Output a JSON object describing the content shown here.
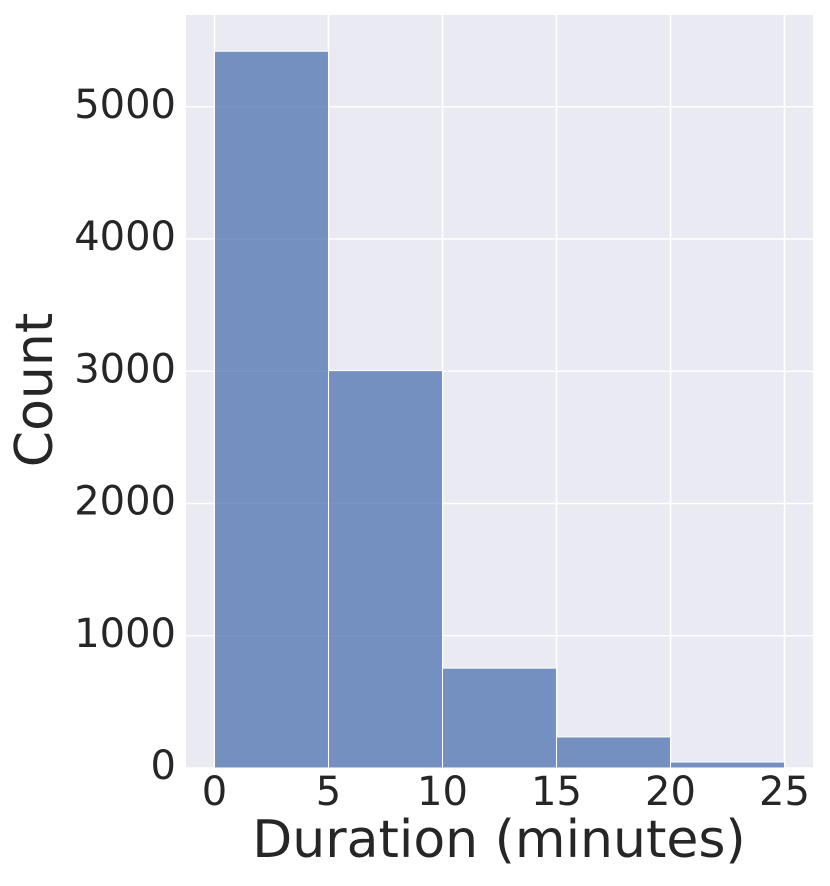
{
  "chart_data": {
    "type": "histogram",
    "x_label": "Duration (minutes)",
    "y_label": "Count",
    "bins": [
      0,
      5,
      10,
      15,
      20,
      25
    ],
    "values": [
      5420,
      3005,
      755,
      235,
      45
    ],
    "color": "#4c72b0",
    "xlim": [
      -1.25,
      26.25
    ],
    "xticks": [
      0,
      5,
      10,
      15,
      20,
      25
    ],
    "ylim": [
      0,
      5694
    ],
    "yticks": [
      0,
      1000,
      2000,
      3000,
      4000,
      5000
    ],
    "grid": true
  }
}
